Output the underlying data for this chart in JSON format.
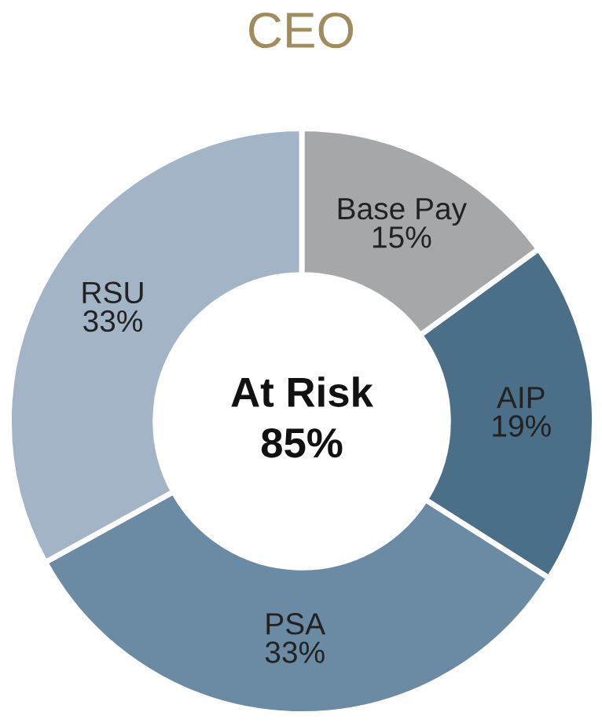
{
  "chart_data": {
    "type": "donut",
    "title": "CEO",
    "categories": [
      "Base Pay",
      "AIP",
      "PSA",
      "RSU"
    ],
    "values": [
      15,
      19,
      33,
      33
    ],
    "value_labels": [
      "15%",
      "19%",
      "33%",
      "33%"
    ],
    "colors": [
      "#a6a7a9",
      "#4b6f88",
      "#6b8aa3",
      "#a2b4c5"
    ],
    "annotations": [
      "At Risk",
      "85%"
    ],
    "legend": false
  }
}
